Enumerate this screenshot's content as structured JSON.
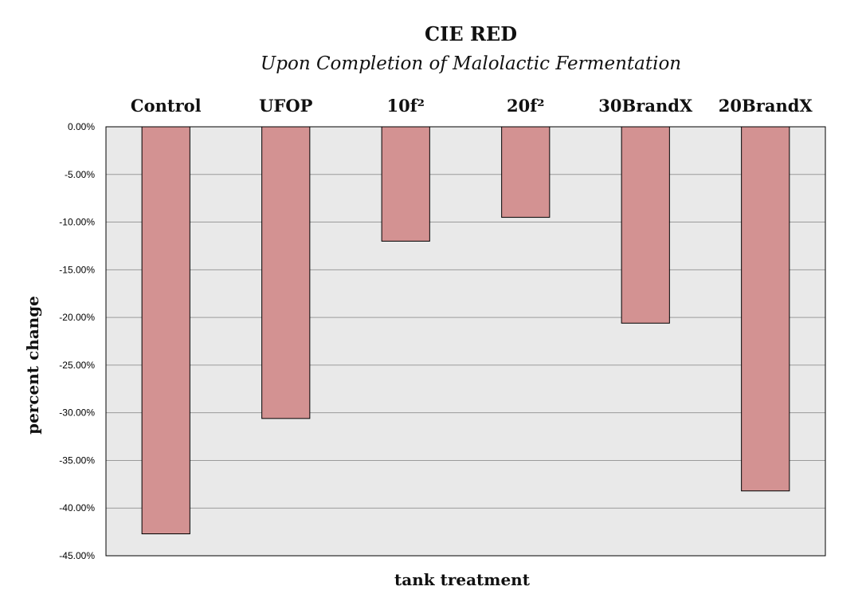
{
  "chart_data": {
    "type": "bar",
    "title": "CIE RED",
    "subtitle": "Upon Completion of Malolactic Fermentation",
    "xlabel": "tank treatment",
    "ylabel": "percent change",
    "categories": [
      "Control",
      "UFOP",
      "10f²",
      "20f²",
      "30BrandX",
      "20BrandX"
    ],
    "values": [
      -42.7,
      -30.6,
      -12.0,
      -9.5,
      -20.6,
      -38.2
    ],
    "ylim": [
      -45,
      0
    ],
    "yticks": [
      "0.00%",
      "-5.00%",
      "-10.00%",
      "-15.00%",
      "-20.00%",
      "-25.00%",
      "-30.00%",
      "-35.00%",
      "-40.00%",
      "-45.00%"
    ],
    "category_labels_position": "top",
    "grid": true,
    "colors": {
      "bar": "#d39292",
      "plot_background": "#e9e9e9"
    }
  }
}
